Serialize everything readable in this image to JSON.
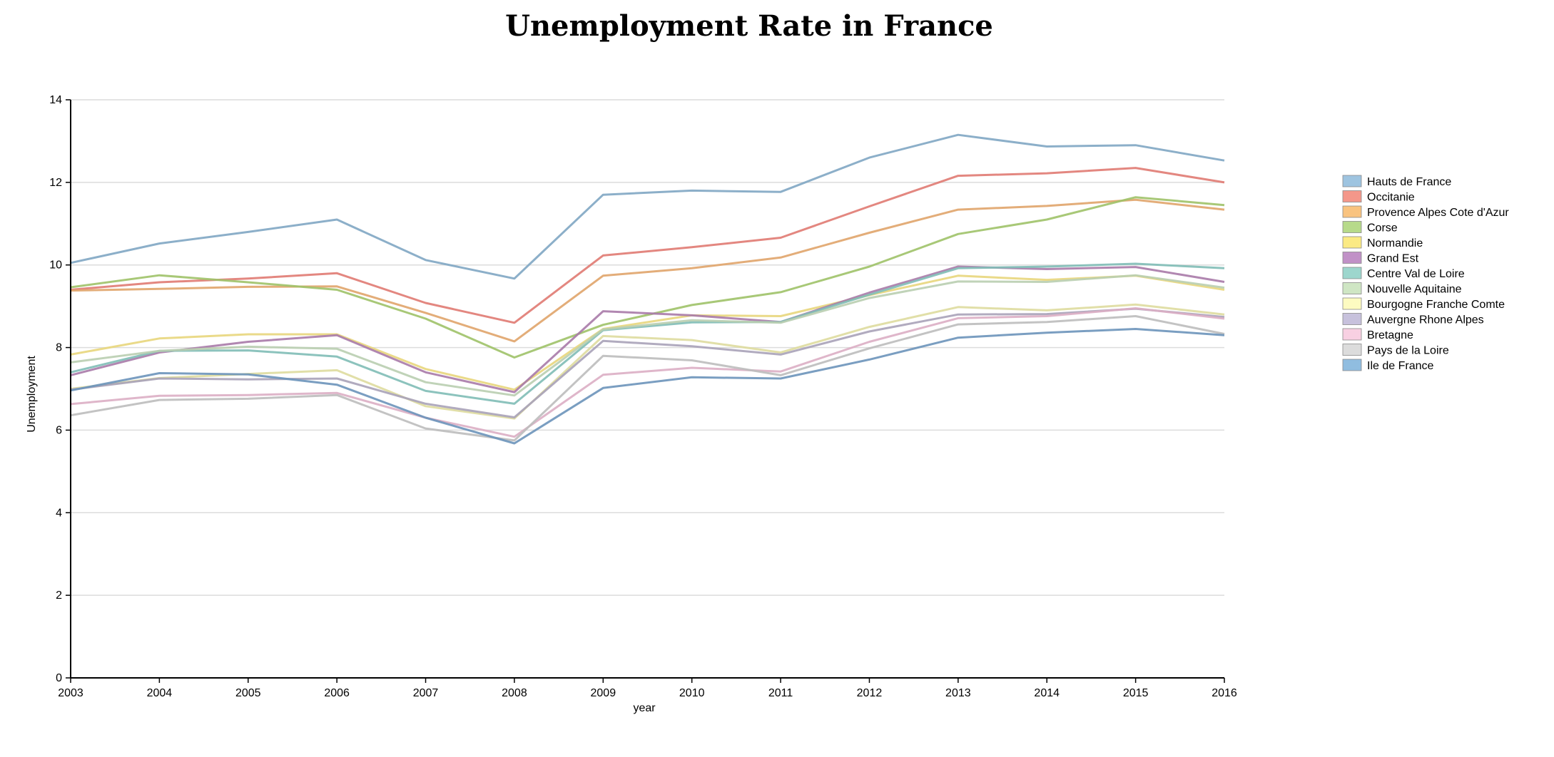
{
  "chart_data": {
    "type": "line",
    "title": "Unemployment Rate in France",
    "xlabel": "year",
    "ylabel": "Unemployment",
    "x": [
      2003,
      2004,
      2005,
      2006,
      2007,
      2008,
      2009,
      2010,
      2011,
      2012,
      2013,
      2014,
      2015,
      2016
    ],
    "xlim": [
      2003,
      2016
    ],
    "ylim": [
      0,
      14
    ],
    "yticks": [
      0,
      2,
      4,
      6,
      8,
      10,
      12,
      14
    ],
    "grid": true,
    "legend_position": "right",
    "series": [
      {
        "name": "Hauts de France",
        "color": "#7fa6c3",
        "values": [
          10.05,
          10.52,
          10.8,
          11.1,
          10.12,
          9.67,
          11.7,
          11.8,
          11.77,
          12.6,
          13.15,
          12.87,
          12.9,
          12.53
        ]
      },
      {
        "name": "Occitanie",
        "color": "#e07a72",
        "values": [
          9.4,
          9.58,
          9.67,
          9.8,
          9.08,
          8.6,
          10.23,
          10.43,
          10.66,
          11.42,
          12.16,
          12.22,
          12.35,
          12.0
        ]
      },
      {
        "name": "Provence Alpes Cote d'Azur",
        "color": "#e0a46a",
        "values": [
          9.38,
          9.42,
          9.47,
          9.48,
          8.84,
          8.15,
          9.74,
          9.92,
          10.18,
          10.78,
          11.34,
          11.43,
          11.58,
          11.34
        ]
      },
      {
        "name": "Corse",
        "color": "#9fc268",
        "values": [
          9.46,
          9.75,
          9.58,
          9.4,
          8.7,
          7.76,
          8.55,
          9.03,
          9.34,
          9.96,
          10.75,
          11.1,
          11.64,
          11.45
        ]
      },
      {
        "name": "Normandie",
        "color": "#e8d67c",
        "values": [
          7.83,
          8.22,
          8.32,
          8.32,
          7.48,
          6.98,
          8.45,
          8.78,
          8.76,
          9.27,
          9.74,
          9.64,
          9.74,
          9.4
        ]
      },
      {
        "name": "Grand Est",
        "color": "#a97aa8",
        "values": [
          7.33,
          7.88,
          8.14,
          8.3,
          7.4,
          6.92,
          8.88,
          8.78,
          8.62,
          9.33,
          9.96,
          9.9,
          9.95,
          9.59
        ]
      },
      {
        "name": "Centre Val de Loire",
        "color": "#7fbcb6",
        "values": [
          7.4,
          7.92,
          7.93,
          7.78,
          6.95,
          6.64,
          8.42,
          8.61,
          8.62,
          9.28,
          9.92,
          9.96,
          10.03,
          9.92
        ]
      },
      {
        "name": "Nouvelle Aquitaine",
        "color": "#b9ceb0",
        "values": [
          7.64,
          7.92,
          8.02,
          7.97,
          7.16,
          6.84,
          8.44,
          8.66,
          8.6,
          9.2,
          9.6,
          9.59,
          9.75,
          9.45
        ]
      },
      {
        "name": "Bourgogne Franche Comte",
        "color": "#dedc9f",
        "values": [
          7.0,
          7.26,
          7.36,
          7.45,
          6.58,
          6.28,
          8.28,
          8.18,
          7.88,
          8.5,
          8.98,
          8.9,
          9.04,
          8.8
        ]
      },
      {
        "name": "Auvergne Rhone Alpes",
        "color": "#a8a2b8",
        "values": [
          6.98,
          7.25,
          7.23,
          7.25,
          6.64,
          6.31,
          8.16,
          8.03,
          7.83,
          8.39,
          8.8,
          8.81,
          8.94,
          8.74
        ]
      },
      {
        "name": "Bretagne",
        "color": "#dcaec4",
        "values": [
          6.63,
          6.83,
          6.85,
          6.9,
          6.3,
          5.84,
          7.34,
          7.51,
          7.42,
          8.14,
          8.71,
          8.76,
          8.95,
          8.7
        ]
      },
      {
        "name": "Pays de la Loire",
        "color": "#bdbdbd",
        "values": [
          6.36,
          6.73,
          6.76,
          6.85,
          6.04,
          5.75,
          7.8,
          7.69,
          7.33,
          7.98,
          8.56,
          8.62,
          8.76,
          8.33
        ]
      },
      {
        "name": "Ile de France",
        "color": "#6b93ba",
        "values": [
          6.96,
          7.38,
          7.35,
          7.1,
          6.3,
          5.68,
          7.02,
          7.28,
          7.25,
          7.71,
          8.24,
          8.36,
          8.45,
          8.3
        ]
      }
    ]
  },
  "legend_swatch_colors": [
    "#9ec4e0",
    "#f4978a",
    "#f9c37f",
    "#b7da8a",
    "#fbea84",
    "#c191c7",
    "#9dd6cd",
    "#cfe6c4",
    "#fdfbc1",
    "#c7c1dc",
    "#f8d0e2",
    "#dcdcdc",
    "#90bde0"
  ]
}
